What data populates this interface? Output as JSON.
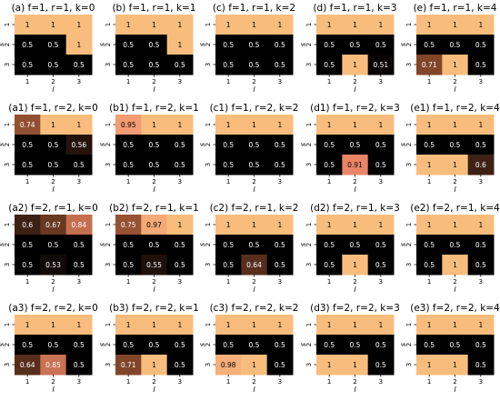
{
  "figure": {
    "colors": {
      "low": "#000000",
      "mid_brown": "#8a4a2c",
      "high": "#f8bd7d",
      "peak_pink": "#f08a6c",
      "cell_text_dark": "#000000",
      "cell_text_light": "#ffffff"
    }
  },
  "chart_data": [
    {
      "type": "heatmap",
      "title": "(a) f=1, r=1, k=0",
      "xlabel": "l",
      "ylabel": "s",
      "x_ticks": [
        "1",
        "2",
        "3"
      ],
      "y_ticks": [
        "1",
        "2",
        "3"
      ],
      "values": [
        [
          1,
          1,
          1
        ],
        [
          0.5,
          0.5,
          1
        ],
        [
          0.5,
          0.5,
          0.5
        ]
      ],
      "cell_labels": [
        [
          "1",
          "1",
          "1"
        ],
        [
          "0.5",
          "0.5",
          "1"
        ],
        [
          "0.5",
          "0.5",
          "0.5"
        ]
      ]
    },
    {
      "type": "heatmap",
      "title": "(b) f=1, r=1, k=1",
      "xlabel": "l",
      "ylabel": "s",
      "x_ticks": [
        "1",
        "2",
        "3"
      ],
      "y_ticks": [
        "1",
        "2",
        "3"
      ],
      "values": [
        [
          1,
          1,
          1
        ],
        [
          0.5,
          0.5,
          1
        ],
        [
          0.5,
          0.5,
          0.5
        ]
      ],
      "cell_labels": [
        [
          "1",
          "1",
          "1"
        ],
        [
          "0.5",
          "0.5",
          "1"
        ],
        [
          "0.5",
          "0.5",
          "0.5"
        ]
      ]
    },
    {
      "type": "heatmap",
      "title": "(c) f=1, r=1, k=2",
      "xlabel": "l",
      "ylabel": "s",
      "x_ticks": [
        "1",
        "2",
        "3"
      ],
      "y_ticks": [
        "1",
        "2",
        "3"
      ],
      "values": [
        [
          1,
          1,
          1
        ],
        [
          0.5,
          0.5,
          0.5
        ],
        [
          0.5,
          0.5,
          0.5
        ]
      ],
      "cell_labels": [
        [
          "1",
          "1",
          "1"
        ],
        [
          "0.5",
          "0.5",
          "0.5"
        ],
        [
          "0.5",
          "0.5",
          "0.5"
        ]
      ]
    },
    {
      "type": "heatmap",
      "title": "(d) f=1, r=1, k=3",
      "xlabel": "l",
      "ylabel": "s",
      "x_ticks": [
        "1",
        "2",
        "3"
      ],
      "y_ticks": [
        "1",
        "2",
        "3"
      ],
      "values": [
        [
          1,
          1,
          1
        ],
        [
          0.5,
          0.5,
          0.5
        ],
        [
          0.5,
          1,
          0.51
        ]
      ],
      "cell_labels": [
        [
          "1",
          "1",
          "1"
        ],
        [
          "0.5",
          "0.5",
          "0.5"
        ],
        [
          "0.5",
          "1",
          "0.51"
        ]
      ]
    },
    {
      "type": "heatmap",
      "title": "(e) f=1, r=1, k=4",
      "xlabel": "l",
      "ylabel": "s",
      "x_ticks": [
        "1",
        "2",
        "3"
      ],
      "y_ticks": [
        "1",
        "2",
        "3"
      ],
      "values": [
        [
          1,
          1,
          1
        ],
        [
          0.5,
          0.5,
          0.5
        ],
        [
          0.71,
          1,
          0.5
        ]
      ],
      "cell_labels": [
        [
          "1",
          "1",
          "1"
        ],
        [
          "0.5",
          "0.5",
          "0.5"
        ],
        [
          "0.71",
          "1",
          "0.5"
        ]
      ]
    },
    {
      "type": "heatmap",
      "title": "(a1) f=1, r=2, k=0",
      "xlabel": "l",
      "ylabel": "s",
      "x_ticks": [
        "1",
        "2",
        "3"
      ],
      "y_ticks": [
        "1",
        "2",
        "3"
      ],
      "values": [
        [
          0.74,
          1,
          1
        ],
        [
          0.5,
          0.5,
          0.56
        ],
        [
          0.5,
          0.5,
          0.5
        ]
      ],
      "cell_labels": [
        [
          "0.74",
          "1",
          "1"
        ],
        [
          "0.5",
          "0.5",
          "0.56"
        ],
        [
          "0.5",
          "0.5",
          "0.5"
        ]
      ]
    },
    {
      "type": "heatmap",
      "title": "(b1) f=1, r=2, k=1",
      "xlabel": "l",
      "ylabel": "s",
      "x_ticks": [
        "1",
        "2",
        "3"
      ],
      "y_ticks": [
        "1",
        "2",
        "3"
      ],
      "values": [
        [
          0.95,
          1,
          1
        ],
        [
          0.5,
          0.5,
          0.5
        ],
        [
          0.5,
          0.5,
          0.5
        ]
      ],
      "cell_labels": [
        [
          "0.95",
          "1",
          "1"
        ],
        [
          "0.5",
          "0.5",
          "0.5"
        ],
        [
          "0.5",
          "0.5",
          "0.5"
        ]
      ]
    },
    {
      "type": "heatmap",
      "title": "(c1) f=1, r=2, k=2",
      "xlabel": "l",
      "ylabel": "s",
      "x_ticks": [
        "1",
        "2",
        "3"
      ],
      "y_ticks": [
        "1",
        "2",
        "3"
      ],
      "values": [
        [
          1,
          1,
          1
        ],
        [
          0.5,
          0.5,
          0.5
        ],
        [
          0.5,
          0.5,
          0.5
        ]
      ],
      "cell_labels": [
        [
          "1",
          "1",
          "1"
        ],
        [
          "0.5",
          "0.5",
          "0.5"
        ],
        [
          "0.5",
          "0.5",
          "0.5"
        ]
      ]
    },
    {
      "type": "heatmap",
      "title": "(d1) f=1, r=2, k=3",
      "xlabel": "l",
      "ylabel": "s",
      "x_ticks": [
        "1",
        "2",
        "3"
      ],
      "y_ticks": [
        "1",
        "2",
        "3"
      ],
      "values": [
        [
          1,
          1,
          1
        ],
        [
          0.5,
          0.5,
          0.5
        ],
        [
          0.5,
          0.91,
          0.5
        ]
      ],
      "cell_labels": [
        [
          "1",
          "1",
          "1"
        ],
        [
          "0.5",
          "0.5",
          "0.5"
        ],
        [
          "0.5",
          "0.91",
          "0.5"
        ]
      ]
    },
    {
      "type": "heatmap",
      "title": "(e1) f=1, r=2, k=4",
      "xlabel": "l",
      "ylabel": "s",
      "x_ticks": [
        "1",
        "2",
        "3"
      ],
      "y_ticks": [
        "1",
        "2",
        "3"
      ],
      "values": [
        [
          1,
          1,
          1
        ],
        [
          0.5,
          0.5,
          0.5
        ],
        [
          1,
          1,
          0.6
        ]
      ],
      "cell_labels": [
        [
          "1",
          "1",
          "1"
        ],
        [
          "0.5",
          "0.5",
          "0.5"
        ],
        [
          "1",
          "1",
          "0.6"
        ]
      ]
    },
    {
      "type": "heatmap",
      "title": "(a2) f=2, r=1, k=0",
      "xlabel": "l",
      "ylabel": "s",
      "x_ticks": [
        "1",
        "2",
        "3"
      ],
      "y_ticks": [
        "1",
        "2",
        "3"
      ],
      "values": [
        [
          0.6,
          0.67,
          0.84
        ],
        [
          0.5,
          0.5,
          0.5
        ],
        [
          0.5,
          0.53,
          0.5
        ]
      ],
      "cell_labels": [
        [
          "0.6",
          "0.67",
          "0.84"
        ],
        [
          "0.5",
          "0.5",
          "0.5"
        ],
        [
          "0.5",
          "0.53",
          "0.5"
        ]
      ]
    },
    {
      "type": "heatmap",
      "title": "(b2) f=2, r=1, k=1",
      "xlabel": "l",
      "ylabel": "s",
      "x_ticks": [
        "1",
        "2",
        "3"
      ],
      "y_ticks": [
        "1",
        "2",
        "3"
      ],
      "values": [
        [
          0.75,
          0.97,
          1
        ],
        [
          0.5,
          0.5,
          0.5
        ],
        [
          0.5,
          0.55,
          0.5
        ]
      ],
      "cell_labels": [
        [
          "0.75",
          "0.97",
          "1"
        ],
        [
          "0.5",
          "0.5",
          "0.5"
        ],
        [
          "0.5",
          "0.55",
          "0.5"
        ]
      ]
    },
    {
      "type": "heatmap",
      "title": "(c2) f=2, r=1, k=2",
      "xlabel": "l",
      "ylabel": "s",
      "x_ticks": [
        "1",
        "2",
        "3"
      ],
      "y_ticks": [
        "1",
        "2",
        "3"
      ],
      "values": [
        [
          1,
          1,
          1
        ],
        [
          0.5,
          0.5,
          0.5
        ],
        [
          0.5,
          0.64,
          0.5
        ]
      ],
      "cell_labels": [
        [
          "1",
          "1",
          "1"
        ],
        [
          "0.5",
          "0.5",
          "0.5"
        ],
        [
          "0.5",
          "0.64",
          "0.5"
        ]
      ]
    },
    {
      "type": "heatmap",
      "title": "(d2) f=2, r=1, k=3",
      "xlabel": "l",
      "ylabel": "s",
      "x_ticks": [
        "1",
        "2",
        "3"
      ],
      "y_ticks": [
        "1",
        "2",
        "3"
      ],
      "values": [
        [
          1,
          1,
          1
        ],
        [
          0.5,
          0.5,
          0.5
        ],
        [
          0.5,
          1,
          0.5
        ]
      ],
      "cell_labels": [
        [
          "1",
          "1",
          "1"
        ],
        [
          "0.5",
          "0.5",
          "0.5"
        ],
        [
          "0.5",
          "1",
          "0.5"
        ]
      ]
    },
    {
      "type": "heatmap",
      "title": "(e2) f=2, r=1, k=4",
      "xlabel": "l",
      "ylabel": "s",
      "x_ticks": [
        "1",
        "2",
        "3"
      ],
      "y_ticks": [
        "1",
        "2",
        "3"
      ],
      "values": [
        [
          1,
          1,
          1
        ],
        [
          0.5,
          0.5,
          0.5
        ],
        [
          0.5,
          1,
          0.5
        ]
      ],
      "cell_labels": [
        [
          "1",
          "1",
          "1"
        ],
        [
          "0.5",
          "0.5",
          "0.5"
        ],
        [
          "0.5",
          "1",
          "0.5"
        ]
      ]
    },
    {
      "type": "heatmap",
      "title": "(a3) f=2, r=2, k=0",
      "xlabel": "l",
      "ylabel": "s",
      "x_ticks": [
        "1",
        "2",
        "3"
      ],
      "y_ticks": [
        "1",
        "2",
        "3"
      ],
      "values": [
        [
          1,
          1,
          1
        ],
        [
          0.5,
          0.5,
          0.5
        ],
        [
          0.64,
          0.85,
          0.5
        ]
      ],
      "cell_labels": [
        [
          "1",
          "1",
          "1"
        ],
        [
          "0.5",
          "0.5",
          "0.5"
        ],
        [
          "0.64",
          "0.85",
          "0.5"
        ]
      ]
    },
    {
      "type": "heatmap",
      "title": "(b3) f=2, r=2, k=1",
      "xlabel": "l",
      "ylabel": "s",
      "x_ticks": [
        "1",
        "2",
        "3"
      ],
      "y_ticks": [
        "1",
        "2",
        "3"
      ],
      "values": [
        [
          1,
          1,
          1
        ],
        [
          0.5,
          0.5,
          0.5
        ],
        [
          0.71,
          1,
          0.5
        ]
      ],
      "cell_labels": [
        [
          "1",
          "1",
          "1"
        ],
        [
          "0.5",
          "0.5",
          "0.5"
        ],
        [
          "0.71",
          "1",
          "0.5"
        ]
      ]
    },
    {
      "type": "heatmap",
      "title": "(c3) f=2, r=2, k=2",
      "xlabel": "l",
      "ylabel": "s",
      "x_ticks": [
        "1",
        "2",
        "3"
      ],
      "y_ticks": [
        "1",
        "2",
        "3"
      ],
      "values": [
        [
          1,
          1,
          1
        ],
        [
          0.5,
          0.5,
          0.5
        ],
        [
          0.98,
          1,
          0.5
        ]
      ],
      "cell_labels": [
        [
          "1",
          "1",
          "1"
        ],
        [
          "0.5",
          "0.5",
          "0.5"
        ],
        [
          "0.98",
          "1",
          "0.5"
        ]
      ]
    },
    {
      "type": "heatmap",
      "title": "(d3) f=2, r=2, k=3",
      "xlabel": "l",
      "ylabel": "s",
      "x_ticks": [
        "1",
        "2",
        "3"
      ],
      "y_ticks": [
        "1",
        "2",
        "3"
      ],
      "values": [
        [
          1,
          1,
          1
        ],
        [
          0.5,
          0.5,
          0.5
        ],
        [
          1,
          1,
          0.5
        ]
      ],
      "cell_labels": [
        [
          "1",
          "1",
          "1"
        ],
        [
          "0.5",
          "0.5",
          "0.5"
        ],
        [
          "1",
          "1",
          "0.5"
        ]
      ]
    },
    {
      "type": "heatmap",
      "title": "(e3) f=2, r=2, k=4",
      "xlabel": "l",
      "ylabel": "s",
      "x_ticks": [
        "1",
        "2",
        "3"
      ],
      "y_ticks": [
        "1",
        "2",
        "3"
      ],
      "values": [
        [
          1,
          1,
          1
        ],
        [
          0.5,
          0.5,
          0.5
        ],
        [
          1,
          1,
          0.5
        ]
      ],
      "cell_labels": [
        [
          "1",
          "1",
          "1"
        ],
        [
          "0.5",
          "0.5",
          "0.5"
        ],
        [
          "1",
          "1",
          "0.5"
        ]
      ]
    }
  ]
}
